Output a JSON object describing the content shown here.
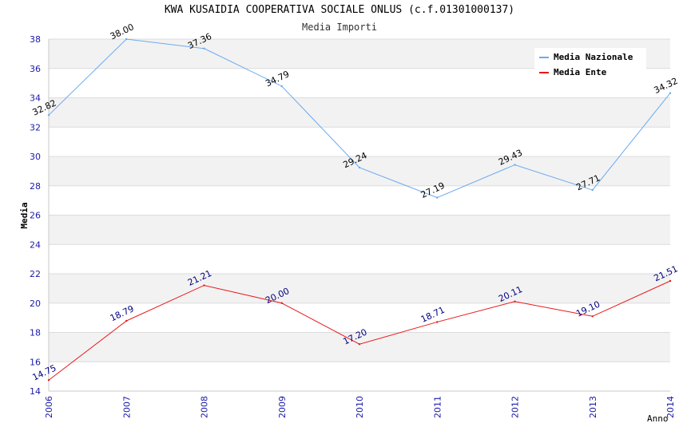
{
  "title": "KWA KUSAIDIA COOPERATIVA SOCIALE ONLUS (c.f.01301000137)",
  "subtitle": "Media Importi",
  "chart_data": {
    "type": "line",
    "xlabel": "Anno",
    "ylabel": "Media",
    "x": [
      "2006",
      "2007",
      "2008",
      "2009",
      "2010",
      "2011",
      "2012",
      "2013",
      "2014"
    ],
    "ylim": [
      14,
      38
    ],
    "yticks": [
      "14",
      "16",
      "18",
      "20",
      "22",
      "24",
      "26",
      "28",
      "30",
      "32",
      "34",
      "36",
      "38"
    ],
    "legend_position": "top-right",
    "grid": true,
    "series": [
      {
        "name": "Media Nazionale",
        "color": "#6aaaf0",
        "label_color": "#000000",
        "values": [
          32.82,
          38.0,
          37.36,
          34.79,
          29.24,
          27.19,
          29.43,
          27.71,
          34.32
        ],
        "labels": [
          "32.82",
          "38.00",
          "37.36",
          "34.79",
          "29.24",
          "27.19",
          "29.43",
          "27.71",
          "34.32"
        ]
      },
      {
        "name": "Media Ente",
        "color": "#e8191c",
        "label_color": "#000080",
        "values": [
          14.75,
          18.79,
          21.21,
          20.0,
          17.2,
          18.71,
          20.11,
          19.1,
          21.51
        ],
        "labels": [
          "14.75",
          "18.79",
          "21.21",
          "20.00",
          "17.20",
          "18.71",
          "20.11",
          "19.10",
          "21.51"
        ]
      }
    ]
  }
}
